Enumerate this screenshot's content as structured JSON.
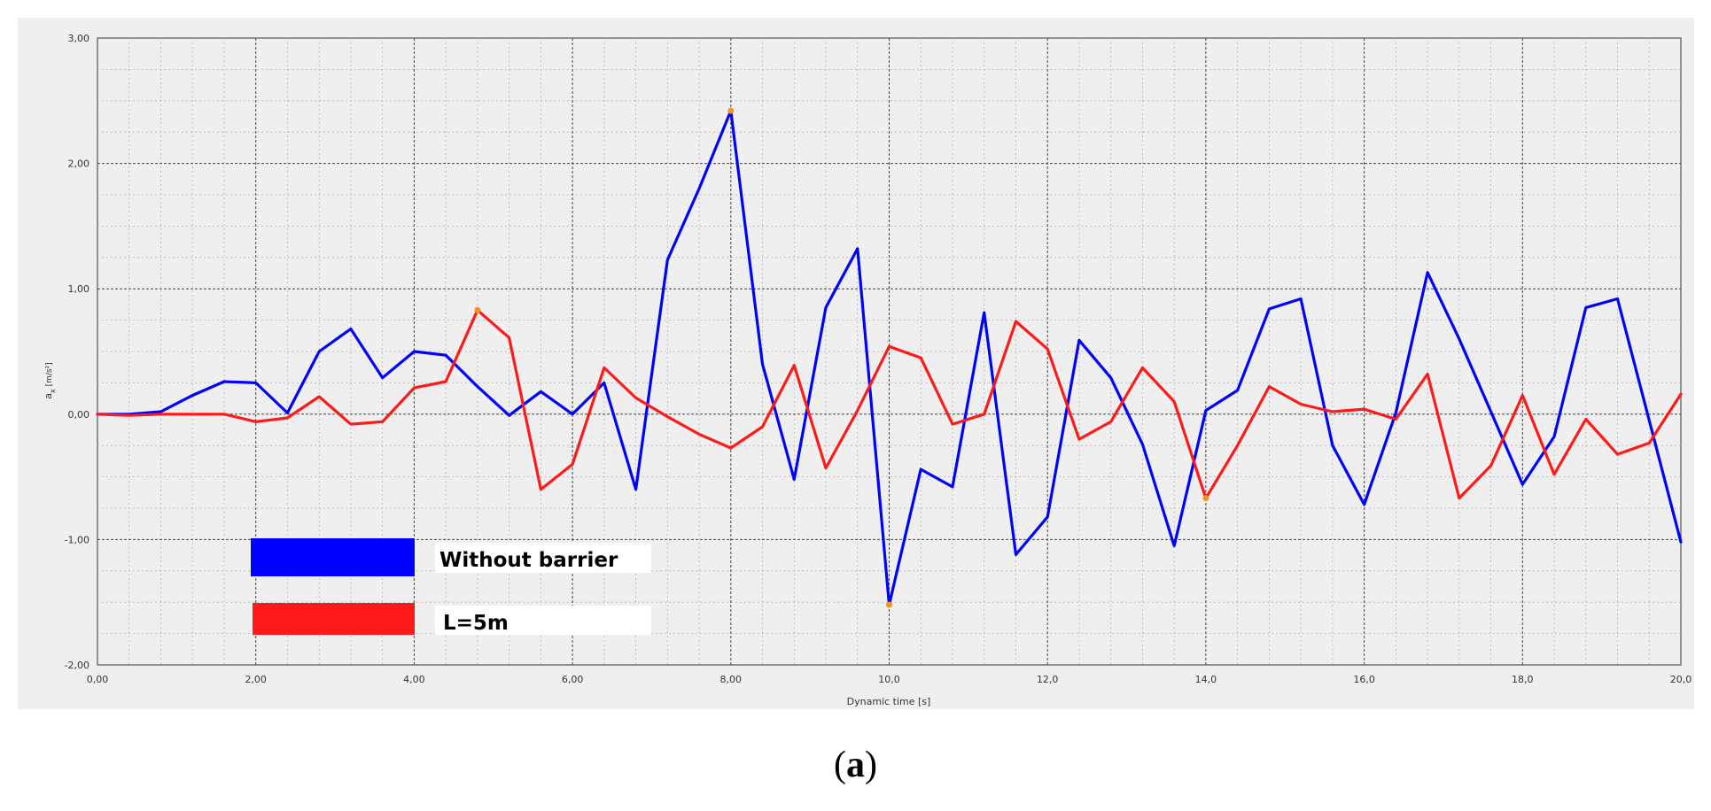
{
  "caption": {
    "open": "(",
    "letter": "a",
    "close": ")"
  },
  "colors": {
    "background": "#efefef",
    "grid_major": "#444444",
    "grid_minor": "#b4b4b4",
    "marker": "#f7941d"
  },
  "chart_data": {
    "type": "line",
    "xlabel": "Dynamic time [s]",
    "ylabel": "a",
    "ylabel_sub": "x",
    "ylabel_unit": " [m/s²]",
    "xlim": [
      0,
      20
    ],
    "ylim": [
      -2,
      3
    ],
    "x_ticks": [
      0,
      2,
      4,
      6,
      8,
      10,
      12,
      14,
      16,
      18,
      20
    ],
    "x_tick_labels": [
      "0,00",
      "2,00",
      "4,00",
      "6,00",
      "8,00",
      "10,0",
      "12,0",
      "14,0",
      "16,0",
      "18,0",
      "20,0"
    ],
    "y_ticks": [
      -2,
      -1,
      0,
      1,
      2,
      3
    ],
    "y_tick_labels": [
      "-2,00",
      "-1,00",
      "0,00",
      "1,00",
      "2,00",
      "3,00"
    ],
    "grid": true,
    "series": [
      {
        "name": "Without barrier",
        "color": "#0000ff",
        "points": [
          [
            0,
            0
          ],
          [
            0.4,
            0
          ],
          [
            0.8,
            0.02
          ],
          [
            1.2,
            0.15
          ],
          [
            1.6,
            0.26
          ],
          [
            2.0,
            0.25
          ],
          [
            2.4,
            0.01
          ],
          [
            2.8,
            0.5
          ],
          [
            3.2,
            0.68
          ],
          [
            3.6,
            0.29
          ],
          [
            4.0,
            0.5
          ],
          [
            4.4,
            0.47
          ],
          [
            4.8,
            0.22
          ],
          [
            5.2,
            -0.01
          ],
          [
            5.6,
            0.18
          ],
          [
            6.0,
            0.0
          ],
          [
            6.4,
            0.25
          ],
          [
            6.8,
            -0.6
          ],
          [
            7.2,
            1.23
          ],
          [
            7.6,
            1.8
          ],
          [
            8.0,
            2.42
          ],
          [
            8.4,
            0.4
          ],
          [
            8.8,
            -0.52
          ],
          [
            9.2,
            0.85
          ],
          [
            9.6,
            1.32
          ],
          [
            10.0,
            -1.52
          ],
          [
            10.4,
            -0.44
          ],
          [
            10.8,
            -0.58
          ],
          [
            11.2,
            0.81
          ],
          [
            11.6,
            -1.12
          ],
          [
            12.0,
            -0.82
          ],
          [
            12.4,
            0.59
          ],
          [
            12.8,
            0.29
          ],
          [
            13.2,
            -0.24
          ],
          [
            13.6,
            -1.05
          ],
          [
            14.0,
            0.03
          ],
          [
            14.4,
            0.19
          ],
          [
            14.8,
            0.84
          ],
          [
            15.2,
            0.92
          ],
          [
            15.6,
            -0.25
          ],
          [
            16.0,
            -0.72
          ],
          [
            16.4,
            0.01
          ],
          [
            16.8,
            1.13
          ],
          [
            17.2,
            0.6
          ],
          [
            17.6,
            0.02
          ],
          [
            18.0,
            -0.56
          ],
          [
            18.4,
            -0.18
          ],
          [
            18.8,
            0.85
          ],
          [
            19.2,
            0.92
          ],
          [
            19.6,
            -0.05
          ],
          [
            20.0,
            -1.02
          ]
        ]
      },
      {
        "name": "L=5m",
        "color": "#ff1a1a",
        "points": [
          [
            0,
            0
          ],
          [
            0.4,
            -0.01
          ],
          [
            0.8,
            0
          ],
          [
            1.2,
            0
          ],
          [
            1.6,
            0
          ],
          [
            2.0,
            -0.06
          ],
          [
            2.4,
            -0.03
          ],
          [
            2.8,
            0.14
          ],
          [
            3.2,
            -0.08
          ],
          [
            3.6,
            -0.06
          ],
          [
            4.0,
            0.21
          ],
          [
            4.4,
            0.26
          ],
          [
            4.8,
            0.83
          ],
          [
            5.2,
            0.61
          ],
          [
            5.6,
            -0.6
          ],
          [
            6.0,
            -0.4
          ],
          [
            6.4,
            0.37
          ],
          [
            6.8,
            0.13
          ],
          [
            7.2,
            -0.02
          ],
          [
            7.6,
            -0.16
          ],
          [
            8.0,
            -0.27
          ],
          [
            8.4,
            -0.1
          ],
          [
            8.8,
            0.39
          ],
          [
            9.2,
            -0.43
          ],
          [
            9.6,
            0.03
          ],
          [
            10.0,
            0.54
          ],
          [
            10.4,
            0.45
          ],
          [
            10.8,
            -0.08
          ],
          [
            11.2,
            0.0
          ],
          [
            11.6,
            0.74
          ],
          [
            12.0,
            0.52
          ],
          [
            12.4,
            -0.2
          ],
          [
            12.8,
            -0.06
          ],
          [
            13.2,
            0.37
          ],
          [
            13.6,
            0.1
          ],
          [
            14.0,
            -0.67
          ],
          [
            14.4,
            -0.25
          ],
          [
            14.8,
            0.22
          ],
          [
            15.2,
            0.08
          ],
          [
            15.6,
            0.02
          ],
          [
            16.0,
            0.04
          ],
          [
            16.4,
            -0.04
          ],
          [
            16.8,
            0.32
          ],
          [
            17.2,
            -0.67
          ],
          [
            17.6,
            -0.41
          ],
          [
            18.0,
            0.15
          ],
          [
            18.4,
            -0.48
          ],
          [
            18.8,
            -0.04
          ],
          [
            19.2,
            -0.32
          ],
          [
            19.6,
            -0.23
          ],
          [
            20.0,
            0.16
          ]
        ]
      }
    ],
    "markers": [
      [
        8.0,
        2.42
      ],
      [
        10.0,
        -1.52
      ],
      [
        4.8,
        0.83
      ],
      [
        14.0,
        -0.67
      ]
    ],
    "legend_placement": "bottom-left"
  }
}
